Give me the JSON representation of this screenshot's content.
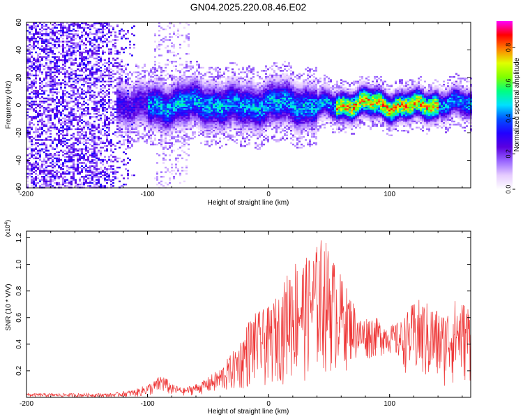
{
  "figure": {
    "title": "GN04.2025.220.08.46.E02"
  },
  "chart_data": [
    {
      "type": "heatmap",
      "xlabel": "Height of straight line (km)",
      "ylabel": "Frequency (Hz)",
      "xlim": [
        -200,
        167
      ],
      "ylim": [
        -60,
        60
      ],
      "xticks": [
        -200,
        -100,
        0,
        100
      ],
      "yticks": [
        60,
        40,
        20,
        0,
        -20,
        -40,
        -60
      ],
      "colorbar": {
        "label": "Normalized spectral amplitude",
        "range": [
          0.0,
          0.95
        ],
        "ticks": [
          0.0,
          0.2,
          0.4,
          0.6,
          0.8
        ],
        "colormap": [
          "#ffffff",
          "#e6ccff",
          "#9966ff",
          "#5a00e0",
          "#2200ff",
          "#0050ff",
          "#00e0ff",
          "#00ff80",
          "#80ff00",
          "#e0ff00",
          "#ff8000",
          "#ff0000",
          "#ff00ff"
        ]
      },
      "features": {
        "ridge_frequency_hz": 0,
        "ridge_start_km": -125,
        "broadband_noise_range_km": [
          -200,
          -110
        ],
        "secondary_noise_band_km": [
          -95,
          -65
        ],
        "peak_amplitude_region_km": [
          55,
          140
        ]
      }
    },
    {
      "type": "line",
      "xlabel": "Height of straight line (km)",
      "ylabel": "SNR (10 * V/V)",
      "y_multiplier": "(x10^4)",
      "xlim": [
        -200,
        167
      ],
      "ylim": [
        0,
        1.25
      ],
      "xticks": [
        -200,
        -100,
        0,
        100
      ],
      "yticks": [
        0.2,
        0.4,
        0.6,
        0.8,
        1.0,
        1.2
      ],
      "color": "#ee3333",
      "envelope": {
        "x": [
          -200,
          -130,
          -110,
          -95,
          -88,
          -80,
          -70,
          -55,
          -40,
          -25,
          -15,
          0,
          10,
          20,
          30,
          40,
          45,
          55,
          65,
          70,
          75,
          85,
          100,
          110,
          120,
          125,
          135,
          145,
          155,
          167
        ],
        "upper": [
          0.03,
          0.03,
          0.06,
          0.12,
          0.18,
          0.1,
          0.07,
          0.12,
          0.22,
          0.4,
          0.62,
          0.68,
          0.8,
          1.06,
          1.04,
          1.15,
          1.23,
          1.02,
          0.82,
          0.73,
          0.6,
          0.62,
          0.54,
          0.58,
          0.72,
          0.74,
          0.7,
          0.64,
          0.75,
          0.7
        ],
        "lower": [
          0.0,
          0.0,
          0.0,
          0.01,
          0.02,
          0.01,
          0.01,
          0.02,
          0.02,
          0.03,
          0.05,
          0.06,
          0.1,
          0.08,
          0.1,
          0.12,
          0.14,
          0.15,
          0.2,
          0.25,
          0.25,
          0.28,
          0.32,
          0.22,
          0.1,
          0.08,
          0.04,
          0.06,
          0.08,
          0.1
        ]
      }
    }
  ]
}
